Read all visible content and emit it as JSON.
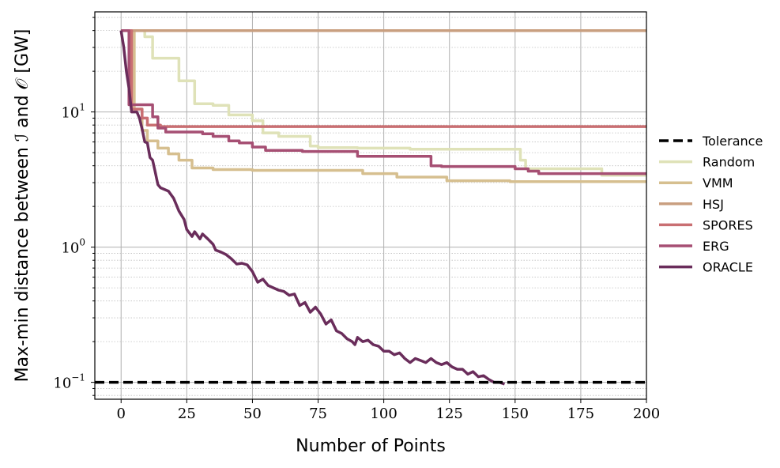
{
  "chart_data": {
    "type": "line",
    "xlabel": "Number of Points",
    "ylabel": "Max-min distance between ℐ and 𝒪 [GW]",
    "xlim": [
      -10,
      200
    ],
    "ylim": [
      0.075,
      55
    ],
    "yscale": "log",
    "grid": true,
    "legend_position": "right",
    "x_ticks": [
      0,
      25,
      50,
      75,
      100,
      125,
      150,
      175,
      200
    ],
    "x_tick_labels": [
      "0",
      "25",
      "50",
      "75",
      "100",
      "125",
      "150",
      "175",
      "200"
    ],
    "y_ticks": [
      {
        "value": 10,
        "base": "10",
        "exp": "1"
      },
      {
        "value": 1,
        "base": "10",
        "exp": "0"
      },
      {
        "value": 0.1,
        "base": "10",
        "exp": "−1"
      }
    ],
    "series": [
      {
        "name": "Tolerance",
        "color": "#000000",
        "dash": true,
        "points": [
          [
            -10,
            0.1
          ],
          [
            200,
            0.1
          ]
        ]
      },
      {
        "name": "Random",
        "color": "#dfe2b8",
        "points": [
          [
            0,
            40
          ],
          [
            9,
            40
          ],
          [
            9,
            36
          ],
          [
            12,
            36
          ],
          [
            12,
            25
          ],
          [
            22,
            25
          ],
          [
            22,
            17
          ],
          [
            28,
            17
          ],
          [
            28,
            11.5
          ],
          [
            35,
            11.5
          ],
          [
            35,
            11.2
          ],
          [
            41,
            11.2
          ],
          [
            41,
            9.5
          ],
          [
            50,
            9.5
          ],
          [
            50,
            8.6
          ],
          [
            54,
            8.6
          ],
          [
            54,
            7.0
          ],
          [
            60,
            7.0
          ],
          [
            60,
            6.6
          ],
          [
            72,
            6.6
          ],
          [
            72,
            5.6
          ],
          [
            75,
            5.6
          ],
          [
            75,
            5.45
          ],
          [
            90,
            5.45
          ],
          [
            90,
            5.4
          ],
          [
            110,
            5.4
          ],
          [
            110,
            5.3
          ],
          [
            152,
            5.3
          ],
          [
            152,
            4.4
          ],
          [
            154,
            4.4
          ],
          [
            154,
            3.8
          ],
          [
            183,
            3.8
          ],
          [
            183,
            3.4
          ],
          [
            200,
            3.4
          ]
        ]
      },
      {
        "name": "VMM",
        "color": "#d6bf8f",
        "points": [
          [
            0,
            40
          ],
          [
            5,
            40
          ],
          [
            5,
            10.5
          ],
          [
            8,
            10.5
          ],
          [
            8,
            7.3
          ],
          [
            10,
            7.3
          ],
          [
            10,
            6.1
          ],
          [
            14,
            6.1
          ],
          [
            14,
            5.4
          ],
          [
            18,
            5.4
          ],
          [
            18,
            4.9
          ],
          [
            22,
            4.9
          ],
          [
            22,
            4.4
          ],
          [
            27,
            4.4
          ],
          [
            27,
            3.85
          ],
          [
            35,
            3.85
          ],
          [
            35,
            3.75
          ],
          [
            50,
            3.75
          ],
          [
            50,
            3.7
          ],
          [
            92,
            3.7
          ],
          [
            92,
            3.5
          ],
          [
            105,
            3.5
          ],
          [
            105,
            3.3
          ],
          [
            124,
            3.3
          ],
          [
            124,
            3.1
          ],
          [
            148,
            3.1
          ],
          [
            148,
            3.05
          ],
          [
            200,
            3.05
          ]
        ]
      },
      {
        "name": "HSJ",
        "color": "#c99f80",
        "points": [
          [
            0,
            40
          ],
          [
            200,
            40
          ]
        ]
      },
      {
        "name": "SPORES",
        "color": "#c96f72",
        "points": [
          [
            0,
            40
          ],
          [
            4,
            40
          ],
          [
            4,
            10.5
          ],
          [
            8,
            10.5
          ],
          [
            8,
            9.0
          ],
          [
            10,
            9.0
          ],
          [
            10,
            8.0
          ],
          [
            15,
            8.0
          ],
          [
            15,
            7.8
          ],
          [
            200,
            7.8
          ]
        ]
      },
      {
        "name": "ERG",
        "color": "#a64f73",
        "points": [
          [
            0,
            40
          ],
          [
            3,
            40
          ],
          [
            3,
            11.3
          ],
          [
            12,
            11.3
          ],
          [
            12,
            9.2
          ],
          [
            14,
            9.2
          ],
          [
            14,
            7.6
          ],
          [
            17,
            7.6
          ],
          [
            17,
            7.1
          ],
          [
            31,
            7.1
          ],
          [
            31,
            6.9
          ],
          [
            35,
            6.9
          ],
          [
            35,
            6.6
          ],
          [
            41,
            6.6
          ],
          [
            41,
            6.1
          ],
          [
            45,
            6.1
          ],
          [
            45,
            5.9
          ],
          [
            50,
            5.9
          ],
          [
            50,
            5.5
          ],
          [
            55,
            5.5
          ],
          [
            55,
            5.2
          ],
          [
            69,
            5.2
          ],
          [
            69,
            5.1
          ],
          [
            90,
            5.1
          ],
          [
            90,
            4.7
          ],
          [
            118,
            4.7
          ],
          [
            118,
            4.0
          ],
          [
            122,
            4.0
          ],
          [
            122,
            3.95
          ],
          [
            150,
            3.95
          ],
          [
            150,
            3.8
          ],
          [
            155,
            3.8
          ],
          [
            155,
            3.65
          ],
          [
            159,
            3.65
          ],
          [
            159,
            3.5
          ],
          [
            200,
            3.5
          ]
        ]
      },
      {
        "name": "ORACLE",
        "color": "#6a2d5b",
        "points": [
          [
            0,
            40
          ],
          [
            1,
            30
          ],
          [
            2,
            20
          ],
          [
            3,
            15
          ],
          [
            4,
            10
          ],
          [
            6,
            10
          ],
          [
            7,
            9
          ],
          [
            8,
            7.5
          ],
          [
            9,
            6
          ],
          [
            10,
            5.9
          ],
          [
            11,
            4.6
          ],
          [
            12,
            4.4
          ],
          [
            13,
            3.6
          ],
          [
            14,
            2.9
          ],
          [
            15,
            2.75
          ],
          [
            18,
            2.6
          ],
          [
            20,
            2.3
          ],
          [
            22,
            1.85
          ],
          [
            24,
            1.6
          ],
          [
            25,
            1.35
          ],
          [
            27,
            1.2
          ],
          [
            28,
            1.3
          ],
          [
            30,
            1.15
          ],
          [
            31,
            1.25
          ],
          [
            33,
            1.15
          ],
          [
            35,
            1.05
          ],
          [
            36,
            0.95
          ],
          [
            38,
            0.92
          ],
          [
            40,
            0.88
          ],
          [
            42,
            0.82
          ],
          [
            44,
            0.75
          ],
          [
            46,
            0.76
          ],
          [
            48,
            0.74
          ],
          [
            50,
            0.66
          ],
          [
            52,
            0.55
          ],
          [
            54,
            0.58
          ],
          [
            56,
            0.52
          ],
          [
            58,
            0.5
          ],
          [
            60,
            0.48
          ],
          [
            62,
            0.47
          ],
          [
            64,
            0.44
          ],
          [
            66,
            0.45
          ],
          [
            68,
            0.37
          ],
          [
            70,
            0.39
          ],
          [
            72,
            0.33
          ],
          [
            74,
            0.36
          ],
          [
            76,
            0.32
          ],
          [
            78,
            0.27
          ],
          [
            80,
            0.29
          ],
          [
            82,
            0.24
          ],
          [
            84,
            0.23
          ],
          [
            86,
            0.21
          ],
          [
            88,
            0.2
          ],
          [
            89,
            0.19
          ],
          [
            90,
            0.215
          ],
          [
            92,
            0.2
          ],
          [
            94,
            0.205
          ],
          [
            96,
            0.19
          ],
          [
            98,
            0.185
          ],
          [
            100,
            0.17
          ],
          [
            102,
            0.17
          ],
          [
            104,
            0.16
          ],
          [
            106,
            0.165
          ],
          [
            108,
            0.15
          ],
          [
            110,
            0.14
          ],
          [
            112,
            0.15
          ],
          [
            114,
            0.145
          ],
          [
            116,
            0.14
          ],
          [
            118,
            0.15
          ],
          [
            120,
            0.14
          ],
          [
            122,
            0.135
          ],
          [
            124,
            0.14
          ],
          [
            126,
            0.13
          ],
          [
            128,
            0.125
          ],
          [
            130,
            0.125
          ],
          [
            132,
            0.115
          ],
          [
            134,
            0.12
          ],
          [
            136,
            0.11
          ],
          [
            138,
            0.112
          ],
          [
            140,
            0.105
          ],
          [
            142,
            0.1
          ],
          [
            144,
            0.1
          ],
          [
            146,
            0.097
          ]
        ]
      }
    ]
  }
}
